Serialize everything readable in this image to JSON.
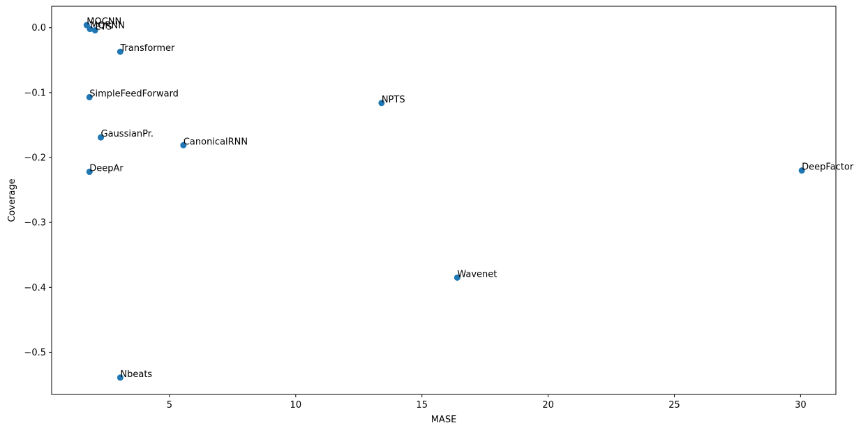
{
  "chart_data": {
    "type": "scatter",
    "title": "",
    "xlabel": "MASE",
    "ylabel": "Coverage",
    "xlim": [
      0.33,
      31.4
    ],
    "ylim": [
      -0.565,
      0.033
    ],
    "xticks": [
      5,
      10,
      15,
      20,
      25,
      30
    ],
    "yticks": [
      0.0,
      -0.1,
      -0.2,
      -0.3,
      -0.4,
      -0.5
    ],
    "xtick_labels": [
      "5",
      "10",
      "15",
      "20",
      "25",
      "30"
    ],
    "ytick_labels": [
      "0.0",
      "−0.1",
      "−0.2",
      "−0.3",
      "−0.4",
      "−0.5"
    ],
    "grid": false,
    "marker_color": "#1f77b4",
    "points": [
      {
        "label": "MQCNN",
        "x": 1.72,
        "y": 0.004
      },
      {
        "label": "MQRNN",
        "x": 1.85,
        "y": -0.002
      },
      {
        "label": "ETS",
        "x": 2.05,
        "y": -0.004
      },
      {
        "label": "Transformer",
        "x": 3.05,
        "y": -0.037
      },
      {
        "label": "SimpleFeedForward",
        "x": 1.83,
        "y": -0.107
      },
      {
        "label": "NPTS",
        "x": 13.4,
        "y": -0.116
      },
      {
        "label": "GaussianPr.",
        "x": 2.28,
        "y": -0.169
      },
      {
        "label": "CanonicalRNN",
        "x": 5.55,
        "y": -0.181
      },
      {
        "label": "DeepAr",
        "x": 1.83,
        "y": -0.222
      },
      {
        "label": "DeepFactor",
        "x": 30.05,
        "y": -0.22
      },
      {
        "label": "Wavenet",
        "x": 16.4,
        "y": -0.385
      },
      {
        "label": "Nbeats",
        "x": 3.05,
        "y": -0.539
      }
    ]
  }
}
